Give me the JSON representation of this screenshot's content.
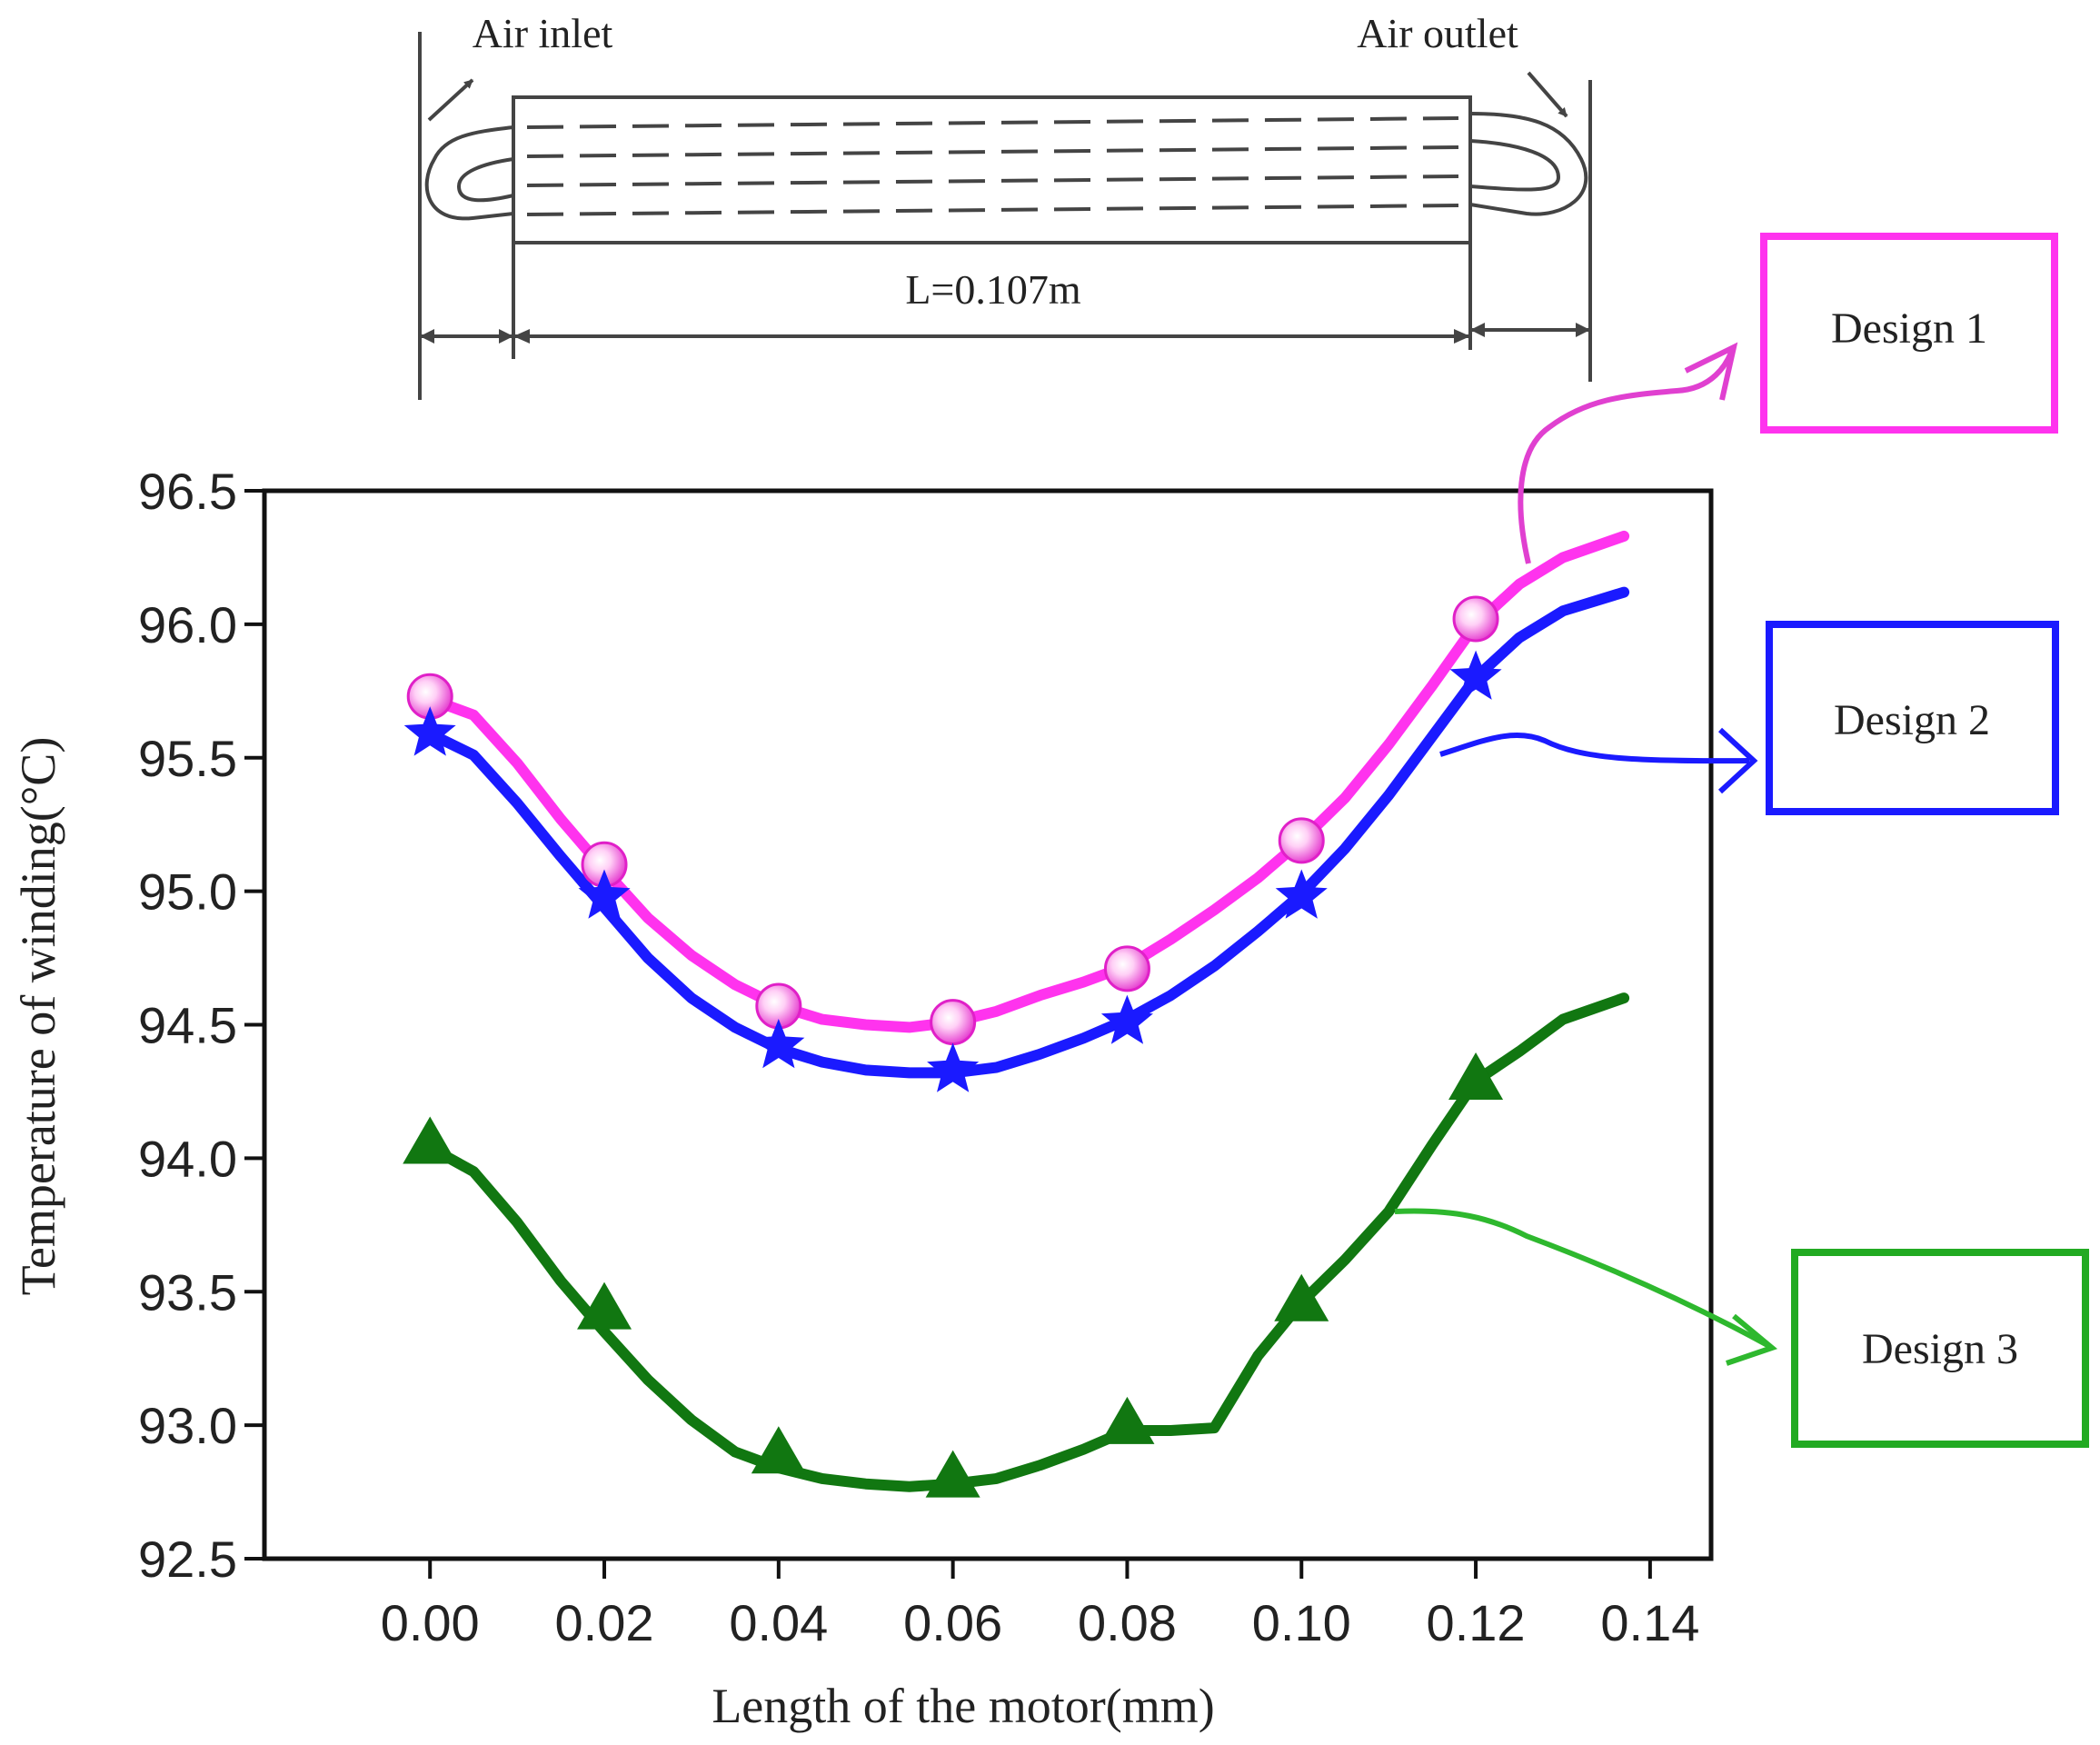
{
  "diagram": {
    "inlet_label": "Air inlet",
    "outlet_label": "Air outlet",
    "length_label": "L=0.107m"
  },
  "legend_boxes": [
    {
      "label": "Design 1",
      "color": "#ff33ee"
    },
    {
      "label": "Design 2",
      "color": "#1a1aff"
    },
    {
      "label": "Design 3",
      "color": "#22aa22"
    }
  ],
  "chart_data": {
    "type": "line",
    "title": "",
    "xlabel": "Length of the motor(mm)",
    "ylabel": "Temperature of winding(°C)",
    "xlim": [
      -0.019,
      0.147
    ],
    "ylim": [
      92.5,
      96.5
    ],
    "xticks": [
      0.0,
      0.02,
      0.04,
      0.06,
      0.08,
      0.1,
      0.12,
      0.14
    ],
    "xtick_labels": [
      "0.00",
      "0.02",
      "0.04",
      "0.06",
      "0.08",
      "0.10",
      "0.12",
      "0.14"
    ],
    "yticks": [
      92.5,
      93.0,
      93.5,
      94.0,
      94.5,
      95.0,
      95.5,
      96.0,
      96.5
    ],
    "ytick_labels": [
      "92.5",
      "93.0",
      "93.5",
      "94.0",
      "94.5",
      "95.0",
      "95.5",
      "96.0",
      "96.5"
    ],
    "grid": false,
    "series": [
      {
        "name": "Design 1",
        "color": "#ff33ee",
        "marker": "sphere",
        "marker_x": [
          0.0,
          0.02,
          0.04,
          0.06,
          0.08,
          0.1,
          0.12
        ],
        "marker_y": [
          95.73,
          95.1,
          94.57,
          94.51,
          94.71,
          95.19,
          96.02
        ],
        "x": [
          0.0,
          0.005,
          0.01,
          0.015,
          0.02,
          0.025,
          0.03,
          0.035,
          0.04,
          0.045,
          0.05,
          0.055,
          0.06,
          0.065,
          0.07,
          0.075,
          0.08,
          0.085,
          0.09,
          0.095,
          0.1,
          0.105,
          0.11,
          0.115,
          0.12,
          0.125,
          0.13,
          0.137
        ],
        "y": [
          95.72,
          95.66,
          95.48,
          95.27,
          95.08,
          94.9,
          94.76,
          94.65,
          94.57,
          94.52,
          94.5,
          94.49,
          94.51,
          94.55,
          94.61,
          94.66,
          94.72,
          94.82,
          94.93,
          95.05,
          95.19,
          95.35,
          95.55,
          95.77,
          96.0,
          96.15,
          96.25,
          96.33
        ]
      },
      {
        "name": "Design 2",
        "color": "#1a1aff",
        "marker": "star",
        "marker_x": [
          0.0,
          0.02,
          0.04,
          0.06,
          0.08,
          0.1,
          0.12
        ],
        "marker_y": [
          95.59,
          94.98,
          94.42,
          94.33,
          94.51,
          94.98,
          95.8
        ],
        "x": [
          0.0,
          0.005,
          0.01,
          0.015,
          0.02,
          0.025,
          0.03,
          0.035,
          0.04,
          0.045,
          0.05,
          0.055,
          0.06,
          0.065,
          0.07,
          0.075,
          0.08,
          0.085,
          0.09,
          0.095,
          0.1,
          0.105,
          0.11,
          0.115,
          0.12,
          0.125,
          0.13,
          0.137
        ],
        "y": [
          95.59,
          95.51,
          95.33,
          95.13,
          94.94,
          94.75,
          94.6,
          94.49,
          94.41,
          94.36,
          94.33,
          94.32,
          94.32,
          94.34,
          94.39,
          94.45,
          94.52,
          94.61,
          94.72,
          94.85,
          94.99,
          95.16,
          95.36,
          95.58,
          95.8,
          95.95,
          96.05,
          96.12
        ]
      },
      {
        "name": "Design 3",
        "color": "#117711",
        "marker": "triangle",
        "marker_x": [
          0.0,
          0.02,
          0.04,
          0.06,
          0.08,
          0.1,
          0.12
        ],
        "marker_y": [
          94.05,
          93.43,
          92.89,
          92.8,
          93.0,
          93.46,
          94.29
        ],
        "x": [
          0.0,
          0.005,
          0.01,
          0.015,
          0.02,
          0.025,
          0.03,
          0.035,
          0.04,
          0.045,
          0.05,
          0.055,
          0.06,
          0.065,
          0.07,
          0.075,
          0.08,
          0.085,
          0.09,
          0.095,
          0.1,
          0.105,
          0.11,
          0.115,
          0.12,
          0.125,
          0.13,
          0.137
        ],
        "y": [
          94.04,
          93.95,
          93.76,
          93.54,
          93.35,
          93.17,
          93.02,
          92.9,
          92.84,
          92.8,
          92.78,
          92.77,
          92.78,
          92.8,
          92.85,
          92.91,
          92.98,
          92.98,
          92.99,
          93.26,
          93.46,
          93.62,
          93.8,
          94.05,
          94.29,
          94.4,
          94.52,
          94.6
        ]
      }
    ]
  }
}
